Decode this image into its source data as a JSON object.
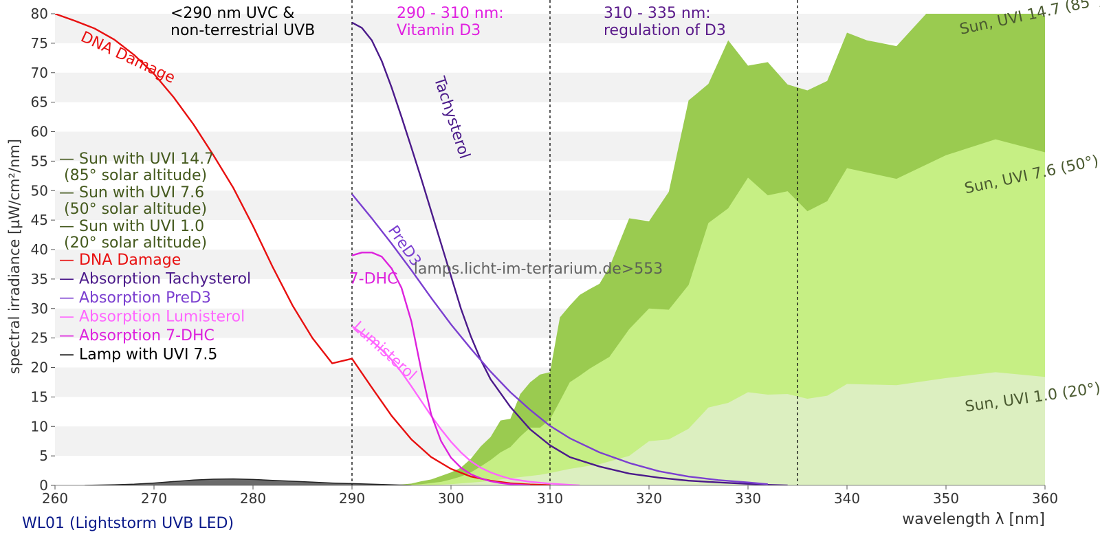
{
  "chart_data": {
    "type": "area",
    "title": "",
    "xlabel": "wavelength λ [nm]",
    "ylabel": "spectral irradiance [µW/cm²/nm]",
    "xlim": [
      260,
      360
    ],
    "ylim": [
      0,
      80
    ],
    "x_ticks": [
      260,
      270,
      280,
      290,
      300,
      310,
      320,
      330,
      340,
      350,
      360
    ],
    "y_ticks": [
      0,
      5,
      10,
      15,
      20,
      25,
      30,
      35,
      40,
      45,
      50,
      55,
      60,
      65,
      70,
      75,
      80
    ],
    "grid": "horizontal alternating bands",
    "vlines": [
      290,
      310,
      335
    ],
    "region_labels": [
      {
        "text": "<290 nm UVC &\nnon-terrestrial UVB",
        "color": "#000000"
      },
      {
        "text": "290 - 310 nm:\nVitamin D3",
        "color": "#e020e0"
      },
      {
        "text": "310 - 335 nm:\nregulation of D3",
        "color": "#5a1a8a"
      }
    ],
    "watermark": "lamps.licht-im-terrarium.de>553",
    "footer_label": "WL01 (Lightstorm UVB LED)",
    "legend": {
      "placement": "left",
      "entries": [
        {
          "text": "— Sun with UVI 14.7\n   (85° solar altitude)",
          "color": "#44591d"
        },
        {
          "text": "— Sun with UVI 7.6\n   (50° solar altitude)",
          "color": "#44591d"
        },
        {
          "text": "— Sun with UVI 1.0\n   (20° solar altitude)",
          "color": "#44591d"
        },
        {
          "text": "— DNA Damage",
          "color": "#e81010"
        },
        {
          "text": "— Absorption Tachysterol",
          "color": "#4b1a8a"
        },
        {
          "text": "— Absorption PreD3",
          "color": "#7b3fd0"
        },
        {
          "text": "— Absorption Lumisterol",
          "color": "#ff66ff"
        },
        {
          "text": "— Absorption 7-DHC",
          "color": "#dd22dd"
        },
        {
          "text": "— Lamp with UVI 7.5",
          "color": "#000000"
        }
      ]
    },
    "series": [
      {
        "name": "Sun, UVI 14.7 (85°)",
        "kind": "area",
        "color": "#9acb50",
        "label_color": "#4a5a30",
        "label_rotation": -12,
        "label_at": [
          351.5,
          76.5
        ],
        "x": [
          294,
          296,
          297,
          298,
          299,
          300,
          301,
          302,
          303,
          304,
          305,
          306,
          307,
          308,
          309,
          310,
          311,
          312,
          313,
          314,
          315,
          316,
          318,
          320,
          322,
          324,
          326,
          328,
          330,
          332,
          334,
          336,
          338,
          340,
          342,
          345,
          348,
          350,
          352,
          355,
          357,
          360
        ],
        "y": [
          0,
          0.3,
          0.7,
          1.0,
          1.6,
          2.2,
          3.0,
          4.5,
          6.6,
          8.2,
          11.0,
          11.3,
          15.5,
          17.5,
          18.8,
          19.2,
          28.5,
          30.5,
          32.3,
          33.3,
          34.2,
          37.0,
          45.3,
          44.8,
          49.8,
          65.3,
          68.1,
          75.5,
          71.2,
          71.8,
          68.0,
          67.0,
          68.6,
          76.8,
          75.5,
          74.5,
          80.0,
          81.4,
          82.1,
          82.5,
          82.0,
          79.5
        ]
      },
      {
        "name": "Sun, UVI 7.6 (50°)",
        "kind": "area",
        "color": "#c6ef84",
        "label_color": "#4a5a30",
        "label_rotation": -12,
        "label_at": [
          352,
          49.5
        ],
        "x": [
          295,
          297,
          298,
          299,
          300,
          301,
          302,
          303,
          304,
          305,
          306,
          307,
          308,
          309,
          310,
          311,
          312,
          313,
          314,
          315,
          316,
          318,
          320,
          322,
          324,
          326,
          328,
          330,
          332,
          334,
          336,
          338,
          340,
          345,
          350,
          355,
          360
        ],
        "y": [
          0,
          0.2,
          0.4,
          0.6,
          1.0,
          1.5,
          2.2,
          3.2,
          4.3,
          5.6,
          6.5,
          8.3,
          9.8,
          9.8,
          11.2,
          14.3,
          17.5,
          18.6,
          19.8,
          20.8,
          21.8,
          26.5,
          30.0,
          29.8,
          34.0,
          44.5,
          47.0,
          52.2,
          49.2,
          49.9,
          46.5,
          48.2,
          53.8,
          52.0,
          56.0,
          58.7,
          56.5
        ]
      },
      {
        "name": "Sun, UVI 1.0 (20°)",
        "kind": "area",
        "color": "#dcefc0",
        "label_color": "#4a5a30",
        "label_rotation": -8,
        "label_at": [
          352,
          12.5
        ],
        "x": [
          297,
          300,
          303,
          305,
          307,
          309,
          310,
          312,
          315,
          318,
          320,
          322,
          324,
          326,
          328,
          330,
          332,
          334,
          336,
          338,
          340,
          345,
          350,
          355,
          360
        ],
        "y": [
          0,
          0.2,
          0.6,
          1.0,
          1.4,
          1.8,
          2.1,
          2.8,
          3.6,
          5.0,
          7.5,
          7.8,
          9.6,
          13.2,
          14.0,
          15.8,
          15.4,
          15.5,
          14.7,
          15.2,
          17.2,
          17.0,
          18.2,
          19.2,
          18.4
        ]
      },
      {
        "name": "Lamp with UVI 7.5",
        "kind": "area",
        "color": "#6b6b6b",
        "x": [
          263,
          266,
          268,
          270,
          272,
          274,
          276,
          278,
          280,
          282,
          284,
          286,
          288,
          290,
          292,
          294,
          296
        ],
        "y": [
          0,
          0.1,
          0.2,
          0.4,
          0.65,
          0.9,
          1.05,
          1.1,
          1.0,
          0.85,
          0.7,
          0.55,
          0.4,
          0.3,
          0.2,
          0.1,
          0
        ]
      },
      {
        "name": "DNA Damage",
        "kind": "line",
        "color": "#e81010",
        "label_rotation": 25,
        "label_at": [
          262.5,
          75.5
        ],
        "x": [
          260,
          262,
          264,
          266,
          268,
          270,
          272,
          274,
          276,
          278,
          280,
          282,
          284,
          286,
          288,
          290,
          292,
          294,
          296,
          298,
          300,
          302,
          304,
          306,
          308,
          310
        ],
        "y": [
          80.0,
          78.8,
          77.5,
          75.6,
          73.0,
          69.8,
          65.8,
          61.2,
          56.0,
          50.5,
          44.0,
          37.0,
          30.5,
          25.0,
          20.7,
          21.5,
          16.6,
          11.8,
          7.8,
          4.8,
          2.8,
          1.5,
          0.8,
          0.35,
          0.15,
          0.05
        ]
      },
      {
        "name": "Tachysterol",
        "kind": "line",
        "color": "#4b1a8a",
        "label_rotation": 72,
        "label_at": [
          298.3,
          69
        ],
        "x": [
          290,
          291,
          292,
          293,
          294,
          295,
          296,
          297,
          298,
          299,
          300,
          301,
          302,
          303,
          304,
          306,
          308,
          310,
          312,
          315,
          318,
          321,
          324,
          327,
          330,
          332,
          334
        ],
        "y": [
          78.5,
          77.6,
          75.5,
          72.0,
          67.5,
          62.5,
          57.3,
          52.0,
          46.5,
          41.0,
          35.5,
          30.0,
          25.3,
          21.3,
          18.0,
          13.3,
          9.5,
          6.8,
          4.8,
          3.2,
          2.0,
          1.3,
          0.8,
          0.5,
          0.25,
          0.1,
          0
        ]
      },
      {
        "name": "PreD3",
        "kind": "line",
        "color": "#7b3fd0",
        "label_rotation": 55,
        "label_at": [
          293.6,
          43.3
        ],
        "x": [
          290,
          292,
          294,
          296,
          298,
          300,
          302,
          304,
          306,
          308,
          310,
          312,
          315,
          318,
          321,
          324,
          327,
          330,
          332
        ],
        "y": [
          49.4,
          45.3,
          41.0,
          36.5,
          31.8,
          27.3,
          23.2,
          19.3,
          15.8,
          12.8,
          10.1,
          8.0,
          5.6,
          3.8,
          2.4,
          1.5,
          0.9,
          0.5,
          0.2
        ]
      },
      {
        "name": "Lumisterol",
        "kind": "line",
        "color": "#ff66ff",
        "label_rotation": 42,
        "label_at": [
          290,
          26.7
        ],
        "x": [
          290,
          291,
          292,
          293,
          294,
          295,
          296,
          297,
          298,
          299,
          300,
          301,
          302,
          303,
          304,
          305,
          306,
          308,
          310,
          312,
          313
        ],
        "y": [
          27.0,
          25.8,
          24.5,
          23.0,
          21.3,
          19.2,
          16.8,
          14.3,
          11.8,
          9.5,
          7.4,
          5.6,
          4.1,
          3.0,
          2.2,
          1.6,
          1.1,
          0.6,
          0.3,
          0.1,
          0
        ]
      },
      {
        "name": "7-DHC",
        "kind": "line",
        "color": "#dd22dd",
        "label_rotation": 0,
        "label_at": [
          289.7,
          34.2
        ],
        "x": [
          290,
          291,
          292,
          293,
          294,
          295,
          296,
          297,
          298,
          299,
          300,
          301,
          302,
          303,
          304,
          305,
          306,
          307,
          308
        ],
        "y": [
          39.0,
          39.5,
          39.5,
          38.8,
          36.8,
          33.5,
          27.8,
          19.5,
          12.0,
          7.5,
          4.7,
          3.0,
          1.9,
          1.2,
          0.7,
          0.4,
          0.2,
          0.1,
          0
        ]
      }
    ]
  }
}
